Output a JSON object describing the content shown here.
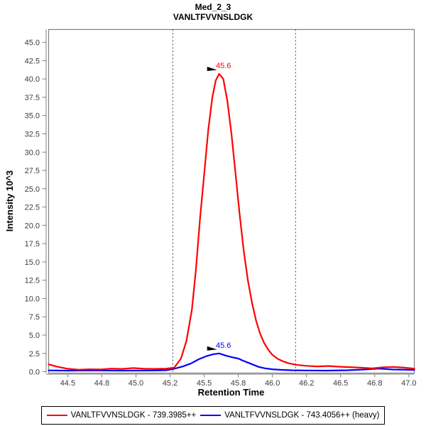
{
  "chart_data": {
    "type": "line",
    "title": "Med_2_3",
    "subtitle": "VANLTFVVNSLDGK",
    "xlabel": "Retention Time",
    "ylabel": "Intensity 10^3",
    "xlim": [
      44.36,
      47.04
    ],
    "ylim": [
      -0.19,
      46.76
    ],
    "grid": false,
    "legend_position": "bottom",
    "x_ticks": {
      "values": [
        44.5,
        44.75,
        45.0,
        45.25,
        45.5,
        45.75,
        46.0,
        46.25,
        46.5,
        46.75,
        47.0
      ],
      "labels": [
        "44.5",
        "44.8",
        "45.0",
        "45.2",
        "45.5",
        "45.8",
        "46.0",
        "46.2",
        "46.5",
        "46.8",
        "47.0"
      ]
    },
    "y_ticks": {
      "values": [
        0,
        2.5,
        5,
        7.5,
        10,
        12.5,
        15,
        17.5,
        20,
        22.5,
        25,
        27.5,
        30,
        32.5,
        35,
        37.5,
        40,
        42.5,
        45
      ],
      "labels": [
        "0.0",
        "2.5",
        "5.0",
        "7.5",
        "10.0",
        "12.5",
        "15.0",
        "17.5",
        "20.0",
        "22.5",
        "25.0",
        "27.5",
        "30.0",
        "32.5",
        "35.0",
        "37.5",
        "40.0",
        "42.5",
        "45.0"
      ]
    },
    "integration_boundaries": [
      45.27,
      46.17
    ],
    "series": [
      {
        "name": "VANLTFVVNSLDGK - 739.3985++",
        "color": "#ff0000",
        "peak_annotation": {
          "label": "45.6",
          "rt": 45.61,
          "intensity": 40.7
        },
        "points": [
          [
            44.36,
            1.0
          ],
          [
            44.42,
            0.7
          ],
          [
            44.5,
            0.4
          ],
          [
            44.58,
            0.28
          ],
          [
            44.66,
            0.33
          ],
          [
            44.74,
            0.3
          ],
          [
            44.82,
            0.42
          ],
          [
            44.9,
            0.38
          ],
          [
            44.98,
            0.5
          ],
          [
            45.06,
            0.4
          ],
          [
            45.14,
            0.38
          ],
          [
            45.22,
            0.42
          ],
          [
            45.28,
            0.55
          ],
          [
            45.33,
            1.8
          ],
          [
            45.37,
            4.2
          ],
          [
            45.41,
            8.5
          ],
          [
            45.44,
            14.0
          ],
          [
            45.47,
            21.0
          ],
          [
            45.5,
            27.0
          ],
          [
            45.53,
            33.0
          ],
          [
            45.56,
            37.5
          ],
          [
            45.585,
            39.8
          ],
          [
            45.61,
            40.7
          ],
          [
            45.64,
            40.0
          ],
          [
            45.67,
            37.0
          ],
          [
            45.7,
            32.5
          ],
          [
            45.73,
            27.0
          ],
          [
            45.76,
            21.5
          ],
          [
            45.79,
            16.5
          ],
          [
            45.82,
            12.5
          ],
          [
            45.85,
            9.5
          ],
          [
            45.88,
            7.0
          ],
          [
            45.91,
            5.2
          ],
          [
            45.94,
            3.9
          ],
          [
            45.97,
            3.0
          ],
          [
            46.0,
            2.3
          ],
          [
            46.04,
            1.75
          ],
          [
            46.08,
            1.4
          ],
          [
            46.12,
            1.15
          ],
          [
            46.17,
            0.95
          ],
          [
            46.25,
            0.8
          ],
          [
            46.33,
            0.72
          ],
          [
            46.41,
            0.78
          ],
          [
            46.49,
            0.68
          ],
          [
            46.57,
            0.62
          ],
          [
            46.65,
            0.55
          ],
          [
            46.73,
            0.45
          ],
          [
            46.81,
            0.6
          ],
          [
            46.89,
            0.65
          ],
          [
            46.97,
            0.55
          ],
          [
            47.04,
            0.42
          ]
        ]
      },
      {
        "name": "VANLTFVVNSLDGK - 743.4056++ (heavy)",
        "color": "#0000ff",
        "peak_annotation": {
          "label": "45.6",
          "rt": 45.61,
          "intensity": 2.5
        },
        "points": [
          [
            44.36,
            0.18
          ],
          [
            44.5,
            0.15
          ],
          [
            44.7,
            0.17
          ],
          [
            44.9,
            0.15
          ],
          [
            45.1,
            0.16
          ],
          [
            45.22,
            0.2
          ],
          [
            45.28,
            0.4
          ],
          [
            45.34,
            0.7
          ],
          [
            45.4,
            1.1
          ],
          [
            45.46,
            1.7
          ],
          [
            45.52,
            2.15
          ],
          [
            45.57,
            2.4
          ],
          [
            45.61,
            2.5
          ],
          [
            45.66,
            2.2
          ],
          [
            45.7,
            2.0
          ],
          [
            45.75,
            1.8
          ],
          [
            45.78,
            1.55
          ],
          [
            45.82,
            1.25
          ],
          [
            45.86,
            0.95
          ],
          [
            45.9,
            0.65
          ],
          [
            45.95,
            0.45
          ],
          [
            46.0,
            0.33
          ],
          [
            46.06,
            0.26
          ],
          [
            46.14,
            0.2
          ],
          [
            46.25,
            0.17
          ],
          [
            46.4,
            0.15
          ],
          [
            46.55,
            0.2
          ],
          [
            46.68,
            0.3
          ],
          [
            46.78,
            0.42
          ],
          [
            46.88,
            0.3
          ],
          [
            47.04,
            0.25
          ]
        ]
      }
    ],
    "colors": {
      "frame": "#7f7f7f",
      "tick_label": "#3d3d3d",
      "boundary_line": "#3f3f3f",
      "annotation_arrow": "#000000"
    }
  }
}
